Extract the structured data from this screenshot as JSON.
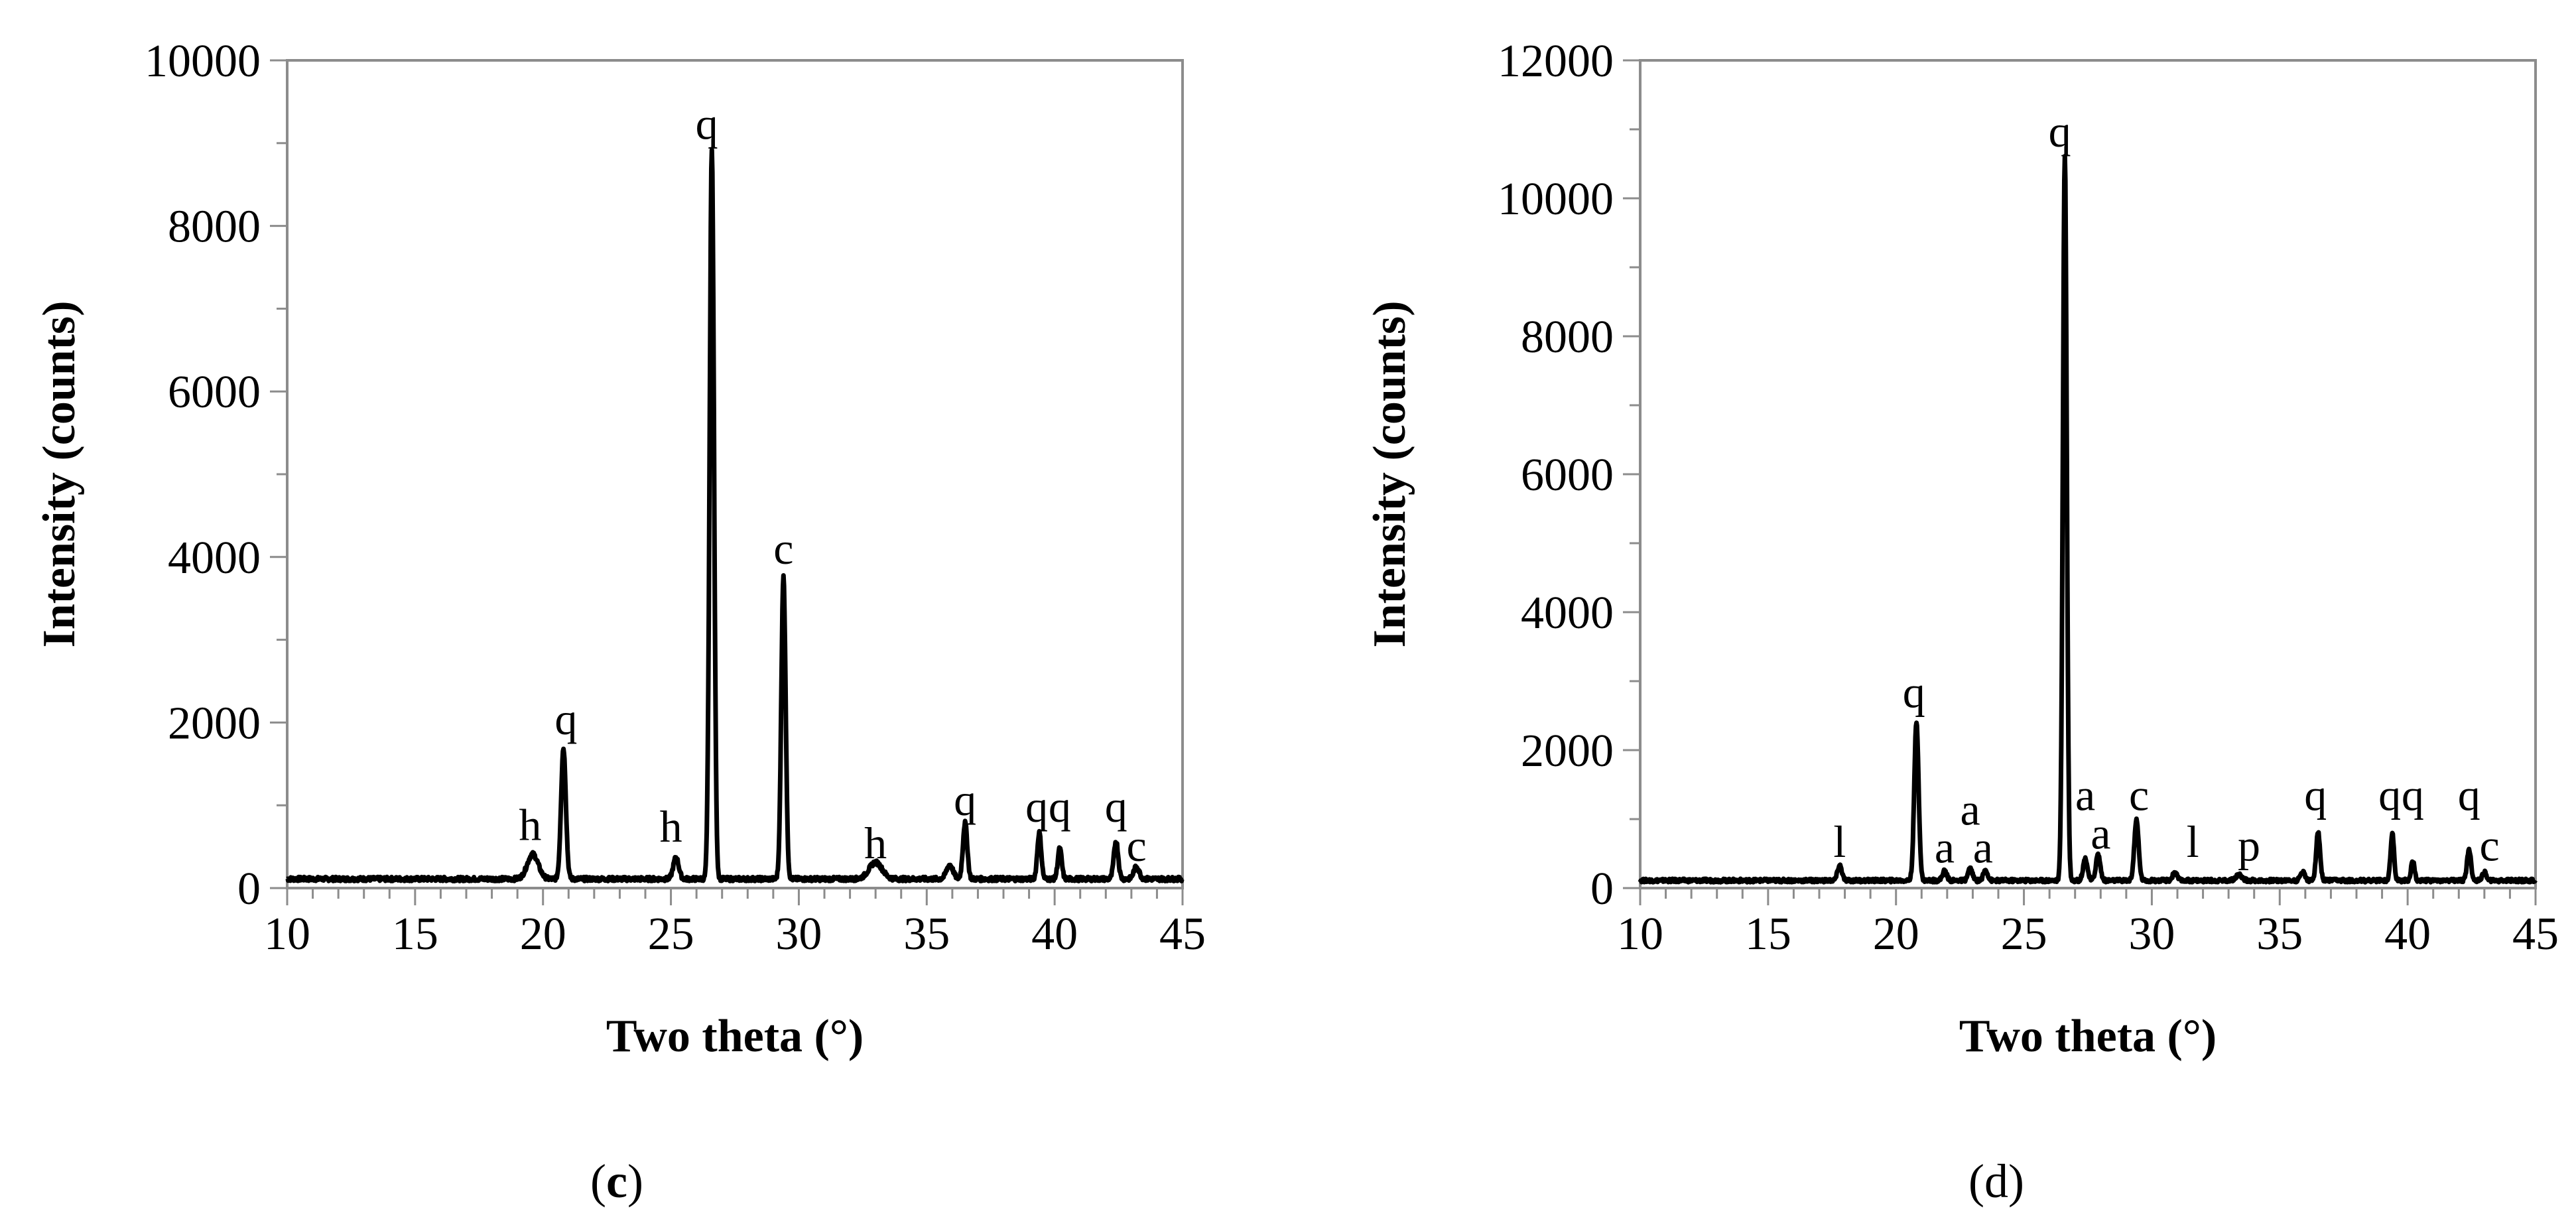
{
  "chart_data": [
    {
      "type": "line",
      "panel": "c",
      "xlabel": "Two theta (°)",
      "ylabel": "Intensity (counts)",
      "xlim": [
        10,
        45
      ],
      "ylim": [
        0,
        10000
      ],
      "xticks": [
        10,
        15,
        20,
        25,
        30,
        35,
        40,
        45
      ],
      "yticks": [
        0,
        2000,
        4000,
        6000,
        8000,
        10000
      ],
      "baseline": 110,
      "peaks": [
        {
          "x": 19.6,
          "y": 300,
          "w": 0.5
        },
        {
          "x": 20.8,
          "y": 1580,
          "w": 0.22
        },
        {
          "x": 25.2,
          "y": 260,
          "w": 0.25
        },
        {
          "x": 26.6,
          "y": 8800,
          "w": 0.2
        },
        {
          "x": 29.4,
          "y": 3650,
          "w": 0.2
        },
        {
          "x": 33.0,
          "y": 200,
          "w": 0.6
        },
        {
          "x": 35.9,
          "y": 170,
          "w": 0.3
        },
        {
          "x": 36.5,
          "y": 680,
          "w": 0.2
        },
        {
          "x": 39.4,
          "y": 560,
          "w": 0.18
        },
        {
          "x": 40.2,
          "y": 370,
          "w": 0.18
        },
        {
          "x": 42.4,
          "y": 460,
          "w": 0.2
        },
        {
          "x": 43.2,
          "y": 150,
          "w": 0.25
        }
      ],
      "annotations": [
        {
          "text": "h",
          "x": 19.5,
          "y": 580
        },
        {
          "text": "q",
          "x": 20.9,
          "y": 1860
        },
        {
          "text": "h",
          "x": 25.0,
          "y": 560
        },
        {
          "text": "q",
          "x": 26.4,
          "y": 9050
        },
        {
          "text": "c",
          "x": 29.4,
          "y": 3920
        },
        {
          "text": "h",
          "x": 33.0,
          "y": 360
        },
        {
          "text": "q",
          "x": 36.5,
          "y": 880
        },
        {
          "text": "q",
          "x": 39.3,
          "y": 800
        },
        {
          "text": "q",
          "x": 40.2,
          "y": 800
        },
        {
          "text": "q",
          "x": 42.4,
          "y": 800
        },
        {
          "text": "c",
          "x": 43.2,
          "y": 330
        }
      ],
      "caption": "(",
      "caption_bold": "c",
      "caption_end": ")"
    },
    {
      "type": "line",
      "panel": "d",
      "xlabel": "Two theta (°)",
      "ylabel": "Intensity (counts)",
      "xlim": [
        10,
        45
      ],
      "ylim": [
        0,
        12000
      ],
      "xticks": [
        10,
        15,
        20,
        25,
        30,
        35,
        40,
        45
      ],
      "yticks": [
        0,
        2000,
        4000,
        6000,
        8000,
        10000,
        12000
      ],
      "baseline": 110,
      "peaks": [
        {
          "x": 17.8,
          "y": 220,
          "w": 0.2
        },
        {
          "x": 20.8,
          "y": 2300,
          "w": 0.2
        },
        {
          "x": 21.9,
          "y": 140,
          "w": 0.2
        },
        {
          "x": 22.9,
          "y": 170,
          "w": 0.2
        },
        {
          "x": 23.5,
          "y": 150,
          "w": 0.2
        },
        {
          "x": 26.6,
          "y": 10500,
          "w": 0.18
        },
        {
          "x": 27.4,
          "y": 320,
          "w": 0.2
        },
        {
          "x": 27.9,
          "y": 380,
          "w": 0.2
        },
        {
          "x": 29.4,
          "y": 870,
          "w": 0.2
        },
        {
          "x": 30.9,
          "y": 120,
          "w": 0.2
        },
        {
          "x": 33.4,
          "y": 80,
          "w": 0.3
        },
        {
          "x": 35.9,
          "y": 130,
          "w": 0.2
        },
        {
          "x": 36.5,
          "y": 700,
          "w": 0.18
        },
        {
          "x": 39.4,
          "y": 680,
          "w": 0.16
        },
        {
          "x": 40.2,
          "y": 280,
          "w": 0.16
        },
        {
          "x": 42.4,
          "y": 450,
          "w": 0.18
        },
        {
          "x": 43.0,
          "y": 120,
          "w": 0.2
        }
      ],
      "annotations": [
        {
          "text": "l",
          "x": 17.8,
          "y": 450
        },
        {
          "text": "q",
          "x": 20.7,
          "y": 2620
        },
        {
          "text": "a",
          "x": 21.9,
          "y": 370
        },
        {
          "text": "a",
          "x": 22.9,
          "y": 920
        },
        {
          "text": "a",
          "x": 23.4,
          "y": 370
        },
        {
          "text": "q",
          "x": 26.4,
          "y": 10750
        },
        {
          "text": "a",
          "x": 27.4,
          "y": 1130
        },
        {
          "text": "a",
          "x": 28.0,
          "y": 570
        },
        {
          "text": "c",
          "x": 29.5,
          "y": 1130
        },
        {
          "text": "l",
          "x": 31.6,
          "y": 450
        },
        {
          "text": "p",
          "x": 33.8,
          "y": 400
        },
        {
          "text": "q",
          "x": 36.4,
          "y": 1130
        },
        {
          "text": "q",
          "x": 39.3,
          "y": 1130
        },
        {
          "text": "q",
          "x": 40.2,
          "y": 1130
        },
        {
          "text": "q",
          "x": 42.4,
          "y": 1130
        },
        {
          "text": "c",
          "x": 43.2,
          "y": 400
        }
      ],
      "caption": "(d)"
    }
  ]
}
